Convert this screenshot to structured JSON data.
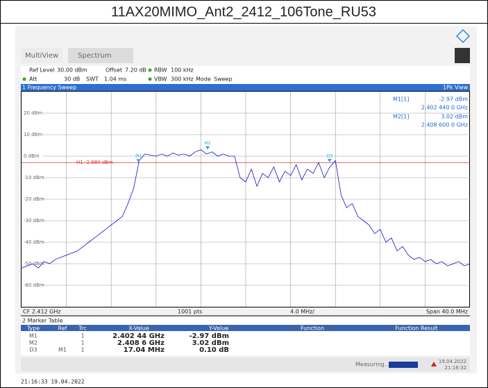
{
  "header": {
    "title": "11AX20MIMO_Ant2_2412_106Tone_RU53"
  },
  "toolbar": {
    "tab1": "MultiView",
    "tab2": "Spectrum"
  },
  "settings": {
    "row1": [
      "Ref Level",
      "30.00 dBm",
      "Offset",
      "7.20 dB",
      "RBW",
      "100 kHz"
    ],
    "row2": [
      "Att",
      "30 dB",
      "SWT",
      "1.04 ms",
      "VBW",
      "300 kHz",
      "Mode",
      "Sweep"
    ]
  },
  "window": {
    "title": "1 Frequency Sweep",
    "trace": "1Pk View"
  },
  "readout": [
    [
      "M1[1]",
      "-2.97 dBm",
      "2.402 440 0 GHz"
    ],
    [
      "M2[1]",
      "3.02 dBm",
      "2.408 600 0 GHz"
    ]
  ],
  "footer": {
    "left": "CF 2.412 GHz",
    "mid": "1001 pts",
    "div": "4.0 MHz/",
    "right": "Span 40.0 MHz"
  },
  "table": {
    "title": "2 Marker Table",
    "headers": [
      "Type",
      "Ref",
      "Trc",
      "X-Value",
      "Y-Value",
      "Function",
      "Function Result"
    ],
    "rows": [
      [
        "M1",
        "",
        "1",
        "2.402 44 GHz",
        "-2.97 dBm"
      ],
      [
        "M2",
        "",
        "1",
        "2.408 6 GHz",
        "3.02 dBm"
      ],
      [
        "D3",
        "M1",
        "1",
        "17.04 MHz",
        "0.10 dB"
      ]
    ]
  },
  "status": {
    "text": "Measuring...",
    "date": "19.04.2022",
    "time": "21:16:32"
  },
  "timestamp": "21:16:33  19.04.2022",
  "chart_data": {
    "type": "line",
    "color": "#1010c8",
    "xlim": [
      2.392,
      2.432
    ],
    "ylim": [
      -70,
      30
    ],
    "yticks": [
      {
        "value": 20,
        "label": "20 dBm"
      },
      {
        "value": 10,
        "label": "10 dBm"
      },
      {
        "value": 0,
        "label": "0 dBm"
      },
      {
        "value": -10,
        "label": "-10 dBm"
      },
      {
        "value": -20,
        "label": "-20 dBm"
      },
      {
        "value": -30,
        "label": "-30 dBm"
      },
      {
        "value": -40,
        "label": "-40 dBm"
      },
      {
        "value": -50,
        "label": "-50 dBm"
      },
      {
        "value": -60,
        "label": "-60 dBm"
      }
    ],
    "grid": true,
    "threshold": {
      "label": "H1 -2.980 dBm",
      "value": -2.98,
      "color": "#e03030"
    },
    "markers": [
      {
        "label": "M1",
        "x": 2.40244,
        "y": -2.97
      },
      {
        "label": "M2",
        "x": 2.4086,
        "y": 3.02
      },
      {
        "label": "D3",
        "x": 2.41948,
        "y": -2.87
      }
    ],
    "x": [
      2.392,
      2.3925,
      2.393,
      2.3935,
      2.394,
      2.3945,
      2.395,
      2.3955,
      2.396,
      2.3965,
      2.397,
      2.3975,
      2.398,
      2.3985,
      2.399,
      2.3995,
      2.4,
      2.4005,
      2.401,
      2.4015,
      2.402,
      2.4025,
      2.403,
      2.4035,
      2.404,
      2.4045,
      2.405,
      2.4055,
      2.406,
      2.4065,
      2.407,
      2.4075,
      2.408,
      2.4085,
      2.409,
      2.4095,
      2.41,
      2.4105,
      2.411,
      2.4115,
      2.412,
      2.4125,
      2.413,
      2.4135,
      2.414,
      2.4145,
      2.415,
      2.4155,
      2.416,
      2.4165,
      2.417,
      2.4175,
      2.418,
      2.4185,
      2.419,
      2.4195,
      2.42,
      2.4205,
      2.421,
      2.4215,
      2.422,
      2.4225,
      2.423,
      2.4235,
      2.424,
      2.4245,
      2.425,
      2.4255,
      2.426,
      2.4265,
      2.427,
      2.4275,
      2.428,
      2.4285,
      2.429,
      2.4295,
      2.43,
      2.4305,
      2.431,
      2.4315,
      2.432
    ],
    "values": [
      -52,
      -51,
      -50,
      -52,
      -49,
      -50,
      -48,
      -47,
      -46,
      -45,
      -44,
      -42,
      -40,
      -38,
      -36,
      -34,
      -32,
      -30,
      -28,
      -22,
      -15,
      -2,
      1,
      0.5,
      0,
      1,
      0,
      1.5,
      0.5,
      1,
      0,
      2,
      3,
      1,
      2,
      0,
      1,
      0,
      0,
      -10,
      -12,
      -6,
      -14,
      -8,
      -10,
      -5,
      -12,
      -7,
      -9,
      -4,
      -11,
      -6,
      -8,
      -3,
      -10,
      -5,
      -2,
      -18,
      -24,
      -22,
      -28,
      -30,
      -32,
      -36,
      -34,
      -40,
      -38,
      -44,
      -42,
      -46,
      -48,
      -47,
      -49,
      -48,
      -50,
      -49,
      -51,
      -50,
      -49,
      -51,
      -50
    ]
  }
}
